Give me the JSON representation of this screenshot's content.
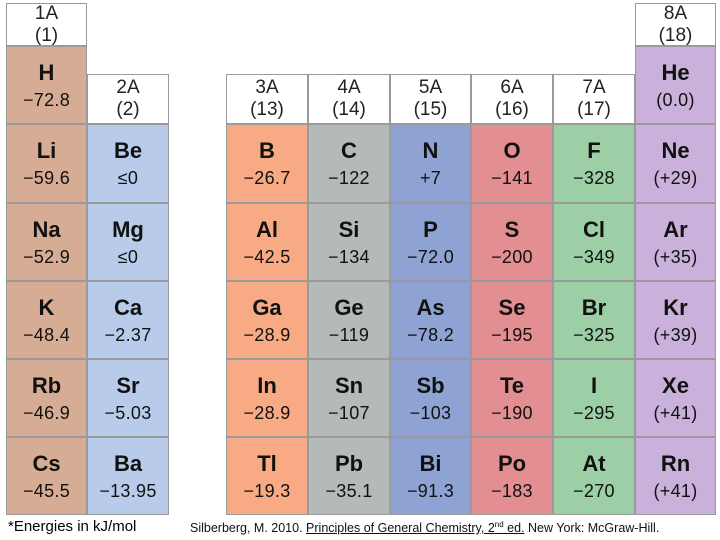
{
  "colors": {
    "1A": "#d6ad94",
    "2A": "#b9cbea",
    "3A": "#f7aa83",
    "4A": "#b4b9b9",
    "5A": "#8ea3d3",
    "6A": "#e38e91",
    "7A": "#9ccfa6",
    "8A": "#c9b1db"
  },
  "headers": [
    {
      "id": "1A",
      "group": "1A",
      "number": "(1)"
    },
    {
      "id": "2A",
      "group": "2A",
      "number": "(2)"
    },
    {
      "id": "3A",
      "group": "3A",
      "number": "(13)"
    },
    {
      "id": "4A",
      "group": "4A",
      "number": "(14)"
    },
    {
      "id": "5A",
      "group": "5A",
      "number": "(15)"
    },
    {
      "id": "6A",
      "group": "6A",
      "number": "(16)"
    },
    {
      "id": "7A",
      "group": "7A",
      "number": "(17)"
    },
    {
      "id": "8A",
      "group": "8A",
      "number": "(18)"
    }
  ],
  "elements": [
    {
      "symbol": "H",
      "value": "−72.8",
      "group": "1A",
      "period": 1
    },
    {
      "symbol": "He",
      "value": "(0.0)",
      "group": "8A",
      "period": 1
    },
    {
      "symbol": "Li",
      "value": "−59.6",
      "group": "1A",
      "period": 2
    },
    {
      "symbol": "Be",
      "value": "≤0",
      "group": "2A",
      "period": 2
    },
    {
      "symbol": "B",
      "value": "−26.7",
      "group": "3A",
      "period": 2
    },
    {
      "symbol": "C",
      "value": "−122",
      "group": "4A",
      "period": 2
    },
    {
      "symbol": "N",
      "value": "+7",
      "group": "5A",
      "period": 2
    },
    {
      "symbol": "O",
      "value": "−141",
      "group": "6A",
      "period": 2
    },
    {
      "symbol": "F",
      "value": "−328",
      "group": "7A",
      "period": 2
    },
    {
      "symbol": "Ne",
      "value": "(+29)",
      "group": "8A",
      "period": 2
    },
    {
      "symbol": "Na",
      "value": "−52.9",
      "group": "1A",
      "period": 3
    },
    {
      "symbol": "Mg",
      "value": "≤0",
      "group": "2A",
      "period": 3
    },
    {
      "symbol": "Al",
      "value": "−42.5",
      "group": "3A",
      "period": 3
    },
    {
      "symbol": "Si",
      "value": "−134",
      "group": "4A",
      "period": 3
    },
    {
      "symbol": "P",
      "value": "−72.0",
      "group": "5A",
      "period": 3
    },
    {
      "symbol": "S",
      "value": "−200",
      "group": "6A",
      "period": 3
    },
    {
      "symbol": "Cl",
      "value": "−349",
      "group": "7A",
      "period": 3
    },
    {
      "symbol": "Ar",
      "value": "(+35)",
      "group": "8A",
      "period": 3
    },
    {
      "symbol": "K",
      "value": "−48.4",
      "group": "1A",
      "period": 4
    },
    {
      "symbol": "Ca",
      "value": "−2.37",
      "group": "2A",
      "period": 4
    },
    {
      "symbol": "Ga",
      "value": "−28.9",
      "group": "3A",
      "period": 4
    },
    {
      "symbol": "Ge",
      "value": "−119",
      "group": "4A",
      "period": 4
    },
    {
      "symbol": "As",
      "value": "−78.2",
      "group": "5A",
      "period": 4
    },
    {
      "symbol": "Se",
      "value": "−195",
      "group": "6A",
      "period": 4
    },
    {
      "symbol": "Br",
      "value": "−325",
      "group": "7A",
      "period": 4
    },
    {
      "symbol": "Kr",
      "value": "(+39)",
      "group": "8A",
      "period": 4
    },
    {
      "symbol": "Rb",
      "value": "−46.9",
      "group": "1A",
      "period": 5
    },
    {
      "symbol": "Sr",
      "value": "−5.03",
      "group": "2A",
      "period": 5
    },
    {
      "symbol": "In",
      "value": "−28.9",
      "group": "3A",
      "period": 5
    },
    {
      "symbol": "Sn",
      "value": "−107",
      "group": "4A",
      "period": 5
    },
    {
      "symbol": "Sb",
      "value": "−103",
      "group": "5A",
      "period": 5
    },
    {
      "symbol": "Te",
      "value": "−190",
      "group": "6A",
      "period": 5
    },
    {
      "symbol": "I",
      "value": "−295",
      "group": "7A",
      "period": 5
    },
    {
      "symbol": "Xe",
      "value": "(+41)",
      "group": "8A",
      "period": 5
    },
    {
      "symbol": "Cs",
      "value": "−45.5",
      "group": "1A",
      "period": 6
    },
    {
      "symbol": "Ba",
      "value": "−13.95",
      "group": "2A",
      "period": 6
    },
    {
      "symbol": "Tl",
      "value": "−19.3",
      "group": "3A",
      "period": 6
    },
    {
      "symbol": "Pb",
      "value": "−35.1",
      "group": "4A",
      "period": 6
    },
    {
      "symbol": "Bi",
      "value": "−91.3",
      "group": "5A",
      "period": 6
    },
    {
      "symbol": "Po",
      "value": "−183",
      "group": "6A",
      "period": 6
    },
    {
      "symbol": "At",
      "value": "−270",
      "group": "7A",
      "period": 6
    },
    {
      "symbol": "Rn",
      "value": "(+41)",
      "group": "8A",
      "period": 6
    }
  ],
  "footnote": "*Energies in kJ/mol",
  "citation": {
    "prefix": "Silberberg, M. 2010. ",
    "title": "Principles of General Chemistry, 2",
    "title_sup": "nd",
    "title_end": " ed.",
    "suffix": " New York: McGraw-Hill."
  }
}
